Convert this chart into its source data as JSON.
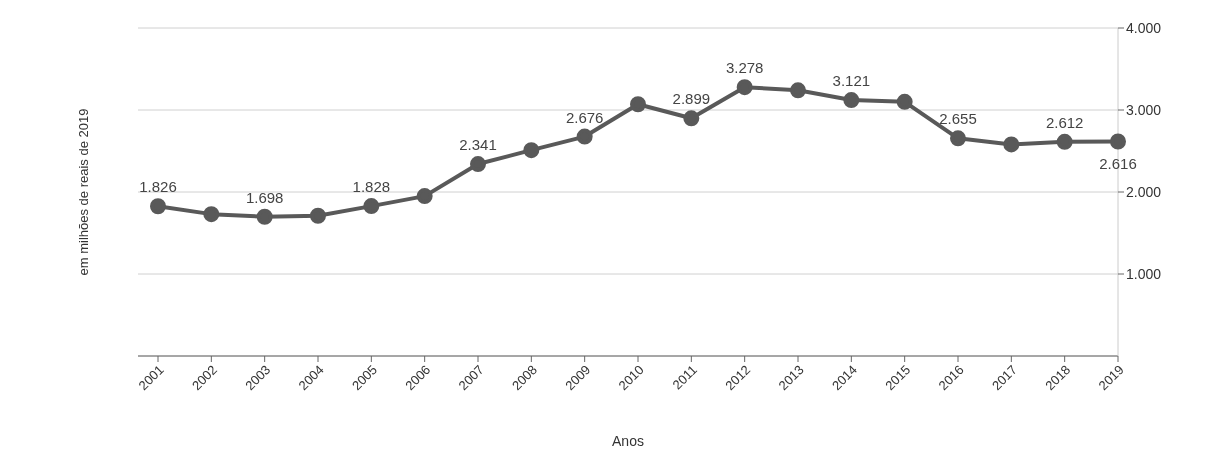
{
  "chart_data": {
    "type": "line",
    "xlabel": "Anos",
    "ylabel": "em milhões de reais de 2019",
    "categories": [
      "2001",
      "2002",
      "2003",
      "2004",
      "2005",
      "2006",
      "2007",
      "2008",
      "2009",
      "2010",
      "2011",
      "2012",
      "2013",
      "2014",
      "2015",
      "2016",
      "2017",
      "2018",
      "2019"
    ],
    "series": [
      {
        "color": "#595959",
        "values": [
          1826,
          1730,
          1698,
          1710,
          1828,
          1950,
          2341,
          2510,
          2676,
          3070,
          2899,
          3278,
          3240,
          3121,
          3100,
          2655,
          2580,
          2612,
          2616
        ],
        "value_labels": [
          "1.826",
          null,
          "1.698",
          null,
          "1.828",
          null,
          "2.341",
          null,
          "2.676",
          null,
          "2.899",
          "3.278",
          null,
          "3.121",
          null,
          "2.655",
          null,
          "2.612",
          "2.616"
        ]
      }
    ],
    "ylim": [
      0,
      4000
    ],
    "yticks": [
      {
        "value": 1000,
        "label": "1.000"
      },
      {
        "value": 2000,
        "label": "2.000"
      },
      {
        "value": 3000,
        "label": "3.000"
      },
      {
        "value": 4000,
        "label": "4.000"
      }
    ],
    "grid": "y",
    "marker": "circle",
    "line_style": "solid",
    "legend": false
  }
}
